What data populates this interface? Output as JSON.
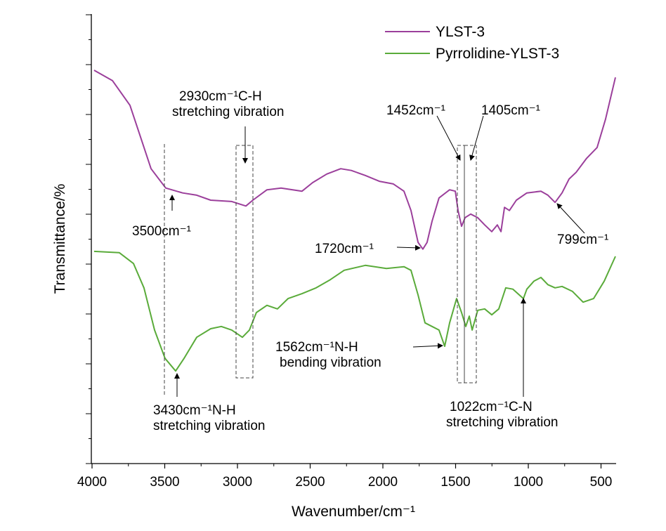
{
  "chart_data": {
    "type": "line",
    "title": "",
    "xlabel": "Wavenumber/cm⁻¹",
    "ylabel": "Transmittance/%",
    "xlim": [
      4000,
      400
    ],
    "ylim": [
      0,
      100
    ],
    "xticks": [
      4000,
      3500,
      3000,
      2500,
      2000,
      1500,
      1000,
      500
    ],
    "xtick_labels": [
      "4000",
      "3500",
      "3000",
      "2500",
      "2000",
      "1500",
      "1000",
      "500"
    ],
    "yticks_labeled": false,
    "legend_position": "top-right",
    "series": [
      {
        "name": "YLST-3",
        "color": "#9b3f9b",
        "x": [
          3986,
          3860,
          3739,
          3667,
          3594,
          3493,
          3377,
          3280,
          3184,
          3039,
          2942,
          2894,
          2797,
          2700,
          2556,
          2483,
          2386,
          2290,
          2217,
          2121,
          2024,
          1928,
          1855,
          1807,
          1758,
          1725,
          1696,
          1662,
          1614,
          1541,
          1502,
          1483,
          1459,
          1435,
          1396,
          1348,
          1300,
          1251,
          1213,
          1188,
          1164,
          1130,
          1082,
          1010,
          913,
          865,
          816,
          768,
          720,
          671,
          599,
          527,
          469,
          401
        ],
        "y": [
          87.5,
          85.2,
          79.7,
          72.7,
          65.6,
          61.3,
          60.2,
          59.7,
          58.6,
          58.3,
          57.3,
          58.6,
          60.9,
          61.3,
          60.6,
          62.5,
          64.4,
          65.6,
          65.2,
          64.1,
          62.8,
          62.2,
          60.6,
          56.3,
          49.2,
          47.7,
          49.2,
          53.9,
          59.1,
          60.9,
          60.6,
          56.3,
          52.8,
          54.7,
          55.5,
          54.7,
          53.1,
          51.6,
          53.1,
          51.6,
          57.0,
          56.3,
          58.6,
          60.2,
          60.6,
          59.7,
          58.1,
          60.2,
          63.3,
          64.8,
          67.9,
          70.3,
          76.6,
          85.9
        ]
      },
      {
        "name": "Pyrrolidine-YLST-3",
        "color": "#5aab3a",
        "x": [
          3986,
          3812,
          3715,
          3643,
          3570,
          3498,
          3425,
          3367,
          3280,
          3184,
          3111,
          3039,
          2966,
          2918,
          2870,
          2797,
          2725,
          2652,
          2556,
          2459,
          2362,
          2266,
          2121,
          1976,
          1855,
          1807,
          1758,
          1710,
          1662,
          1614,
          1575,
          1541,
          1493,
          1459,
          1430,
          1406,
          1386,
          1348,
          1300,
          1251,
          1203,
          1155,
          1106,
          1034,
          1010,
          961,
          913,
          865,
          816,
          768,
          696,
          623,
          551,
          478,
          401
        ],
        "y": [
          47.2,
          46.9,
          44.5,
          39.1,
          29.7,
          23.4,
          20.6,
          23.4,
          28.1,
          30.0,
          30.5,
          29.7,
          28.1,
          29.7,
          33.6,
          35.2,
          34.4,
          36.7,
          37.8,
          39.1,
          40.9,
          43.0,
          44.1,
          43.4,
          43.8,
          43.0,
          37.5,
          31.3,
          30.5,
          29.7,
          26.1,
          31.3,
          36.7,
          33.6,
          30.5,
          32.8,
          29.7,
          34.1,
          34.4,
          33.1,
          34.4,
          39.1,
          38.8,
          36.7,
          38.8,
          40.6,
          41.4,
          39.8,
          39.1,
          39.4,
          38.3,
          35.9,
          36.7,
          40.6,
          46.1
        ]
      }
    ],
    "annotations": {
      "a3500": "3500cm⁻¹",
      "a2930_1": "2930cm⁻¹C-H",
      "a2930_2": "stretching vibration",
      "a1452": "1452cm⁻¹",
      "a1405": "1405cm⁻¹",
      "a1720": "1720cm⁻¹",
      "a799": "799cm⁻¹",
      "a1562_1": "1562cm⁻¹N-H",
      "a1562_2": "bending vibration",
      "a3430_1": "3430cm⁻¹N-H",
      "a3430_2": "stretching vibration",
      "a1022_1": "1022cm⁻¹C-N",
      "a1022_2": "stretching vibration"
    }
  }
}
